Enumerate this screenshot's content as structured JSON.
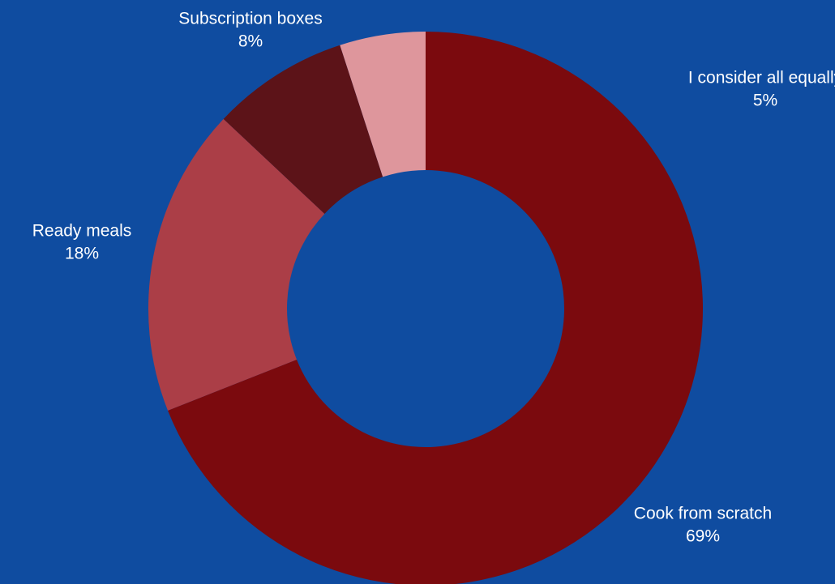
{
  "page": {
    "background_color": "#0f4ca0",
    "label_color": "#ffffff"
  },
  "chart_data": {
    "type": "pie",
    "variant": "donut",
    "title": "",
    "categories": [
      "Cook from scratch",
      "Ready meals",
      "Subscription boxes",
      "I consider all equally"
    ],
    "values": [
      69,
      18,
      8,
      5
    ],
    "labels": [
      {
        "name": "Cook from scratch",
        "percent": "69%"
      },
      {
        "name": "Ready meals",
        "percent": "18%"
      },
      {
        "name": "Subscription boxes",
        "percent": "8%"
      },
      {
        "name": "I consider all equally",
        "percent": "5%"
      }
    ],
    "colors": [
      "#7b0a0e",
      "#ab3e47",
      "#5c1318",
      "#de969c"
    ],
    "start": "top",
    "direction": "clockwise",
    "legend": "none"
  }
}
